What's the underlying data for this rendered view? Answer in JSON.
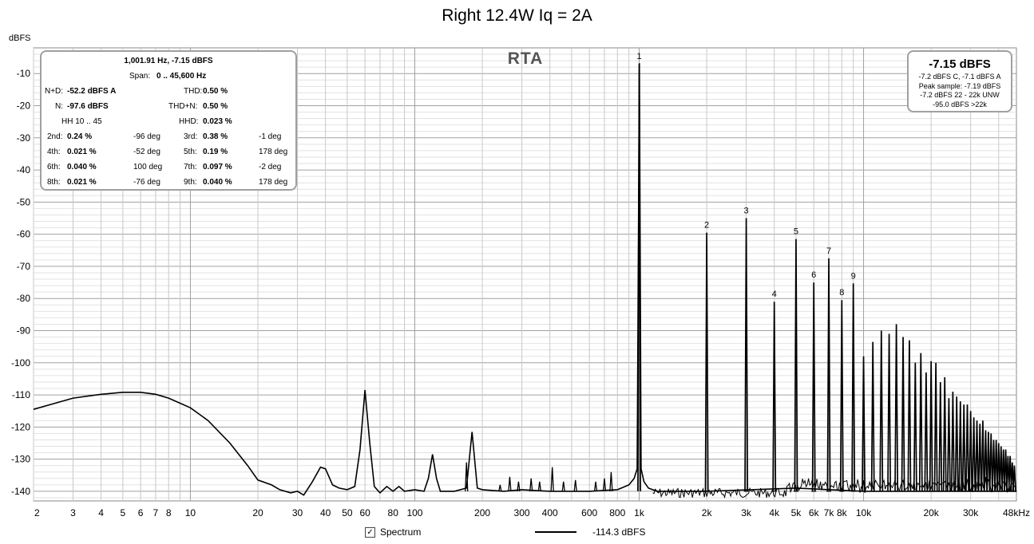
{
  "chart_data": {
    "type": "line",
    "title": "Right 12.4W Iq = 2A",
    "ylabel": "dBFS",
    "xscale": "log",
    "xlim": [
      2,
      48000
    ],
    "ylim": [
      -143,
      -2
    ],
    "grid": true,
    "x_ticks": [
      {
        "v": 2,
        "t": "2"
      },
      {
        "v": 3,
        "t": "3"
      },
      {
        "v": 4,
        "t": "4"
      },
      {
        "v": 5,
        "t": "5"
      },
      {
        "v": 6,
        "t": "6"
      },
      {
        "v": 7,
        "t": "7"
      },
      {
        "v": 8,
        "t": "8"
      },
      {
        "v": 10,
        "t": "10"
      },
      {
        "v": 20,
        "t": "20"
      },
      {
        "v": 30,
        "t": "30"
      },
      {
        "v": 40,
        "t": "40"
      },
      {
        "v": 50,
        "t": "50"
      },
      {
        "v": 60,
        "t": "60"
      },
      {
        "v": 80,
        "t": "80"
      },
      {
        "v": 100,
        "t": "100"
      },
      {
        "v": 200,
        "t": "200"
      },
      {
        "v": 300,
        "t": "300"
      },
      {
        "v": 400,
        "t": "400"
      },
      {
        "v": 600,
        "t": "600"
      },
      {
        "v": 800,
        "t": "800"
      },
      {
        "v": 1000,
        "t": "1k"
      },
      {
        "v": 2000,
        "t": "2k"
      },
      {
        "v": 3000,
        "t": "3k"
      },
      {
        "v": 4000,
        "t": "4k"
      },
      {
        "v": 5000,
        "t": "5k"
      },
      {
        "v": 6000,
        "t": "6k"
      },
      {
        "v": 7000,
        "t": "7k"
      },
      {
        "v": 8000,
        "t": "8k"
      },
      {
        "v": 10000,
        "t": "10k"
      },
      {
        "v": 20000,
        "t": "20k"
      },
      {
        "v": 30000,
        "t": "30k"
      },
      {
        "v": 48000,
        "t": "48kHz"
      }
    ],
    "y_ticks": [
      {
        "v": -10,
        "t": "-10"
      },
      {
        "v": -20,
        "t": "-20"
      },
      {
        "v": -30,
        "t": "-30"
      },
      {
        "v": -40,
        "t": "-40"
      },
      {
        "v": -50,
        "t": "-50"
      },
      {
        "v": -60,
        "t": "-60"
      },
      {
        "v": -70,
        "t": "-70"
      },
      {
        "v": -80,
        "t": "-80"
      },
      {
        "v": -90,
        "t": "-90"
      },
      {
        "v": -100,
        "t": "-100"
      },
      {
        "v": -110,
        "t": "-110"
      },
      {
        "v": -120,
        "t": "-120"
      },
      {
        "v": -130,
        "t": "-130"
      },
      {
        "v": -140,
        "t": "-140"
      }
    ],
    "floor": [
      [
        2,
        -114.5
      ],
      [
        3,
        -111
      ],
      [
        4,
        -109.8
      ],
      [
        5,
        -109.2
      ],
      [
        6,
        -109.2
      ],
      [
        7,
        -109.8
      ],
      [
        8,
        -111
      ],
      [
        10,
        -114
      ],
      [
        12,
        -118
      ],
      [
        15,
        -125
      ],
      [
        18,
        -132
      ],
      [
        20,
        -136.5
      ],
      [
        23,
        -138
      ],
      [
        25,
        -139.5
      ],
      [
        28,
        -140.5
      ],
      [
        30,
        -140
      ],
      [
        32,
        -141.2
      ],
      [
        35,
        -137
      ],
      [
        38,
        -132.5
      ],
      [
        40,
        -133
      ],
      [
        43,
        -138
      ],
      [
        46,
        -139
      ],
      [
        50,
        -139.5
      ],
      [
        54,
        -138.5
      ],
      [
        57,
        -127
      ],
      [
        60,
        -108.5
      ],
      [
        63,
        -125
      ],
      [
        66,
        -138.5
      ],
      [
        70,
        -140.5
      ],
      [
        75,
        -138.5
      ],
      [
        80,
        -140
      ],
      [
        85,
        -138.5
      ],
      [
        90,
        -140
      ],
      [
        100,
        -139.5
      ],
      [
        110,
        -140
      ],
      [
        115,
        -136
      ],
      [
        120,
        -128.5
      ],
      [
        125,
        -136
      ],
      [
        130,
        -140
      ],
      [
        150,
        -140
      ],
      [
        170,
        -139
      ],
      [
        180,
        -121.5
      ],
      [
        190,
        -139
      ],
      [
        200,
        -139.5
      ],
      [
        250,
        -140
      ],
      [
        300,
        -139.5
      ],
      [
        400,
        -140
      ],
      [
        600,
        -140
      ],
      [
        800,
        -139.5
      ],
      [
        900,
        -138
      ],
      [
        950,
        -136
      ],
      [
        980,
        -133
      ],
      [
        1002,
        -6.8
      ],
      [
        1020,
        -133
      ],
      [
        1050,
        -137
      ],
      [
        1100,
        -139
      ],
      [
        1200,
        -140
      ],
      [
        2000,
        -140
      ],
      [
        5000,
        -139
      ],
      [
        10000,
        -140
      ],
      [
        48000,
        -140
      ]
    ],
    "harmonics": [
      [
        1000,
        -7
      ],
      [
        2000,
        -59.5
      ],
      [
        3000,
        -55
      ],
      [
        4000,
        -81
      ],
      [
        5000,
        -61.5
      ],
      [
        6000,
        -75
      ],
      [
        7000,
        -67.5
      ],
      [
        8000,
        -80.5
      ],
      [
        9000,
        -75.3
      ],
      [
        10000,
        -98
      ],
      [
        11000,
        -93.5
      ],
      [
        12000,
        -90
      ],
      [
        13000,
        -91
      ],
      [
        14000,
        -88
      ],
      [
        15000,
        -92
      ],
      [
        16000,
        -93
      ],
      [
        17000,
        -100
      ],
      [
        18000,
        -97
      ],
      [
        19000,
        -103
      ],
      [
        20000,
        -99.5
      ],
      [
        21000,
        -100
      ],
      [
        22000,
        -106
      ],
      [
        23000,
        -104.5
      ],
      [
        24000,
        -111
      ],
      [
        25000,
        -109
      ],
      [
        26000,
        -110.5
      ],
      [
        27000,
        -112
      ],
      [
        28000,
        -113
      ],
      [
        29000,
        -113
      ],
      [
        30000,
        -115
      ],
      [
        31000,
        -117
      ],
      [
        32000,
        -118
      ],
      [
        33000,
        -119
      ],
      [
        34000,
        -118
      ],
      [
        35000,
        -121
      ],
      [
        36000,
        -121.5
      ],
      [
        37000,
        -122
      ],
      [
        38000,
        -124
      ],
      [
        39000,
        -124
      ],
      [
        40000,
        -125
      ],
      [
        41000,
        -126
      ],
      [
        42000,
        -127
      ],
      [
        43000,
        -127
      ],
      [
        44000,
        -129
      ],
      [
        45000,
        -129
      ],
      [
        46000,
        -131
      ],
      [
        47000,
        -132
      ]
    ],
    "spikes": [
      [
        170,
        -131
      ],
      [
        240,
        -138
      ],
      [
        265,
        -135.5
      ],
      [
        290,
        -137
      ],
      [
        330,
        -136
      ],
      [
        360,
        -137
      ],
      [
        410,
        -132.5
      ],
      [
        460,
        -137
      ],
      [
        520,
        -136.5
      ],
      [
        640,
        -137
      ],
      [
        700,
        -136
      ],
      [
        750,
        -134
      ]
    ],
    "harmonic_labels": [
      {
        "x": 1000,
        "y": -7,
        "t": "1"
      },
      {
        "x": 2000,
        "y": -59.5,
        "t": "2"
      },
      {
        "x": 3000,
        "y": -55,
        "t": "3"
      },
      {
        "x": 4000,
        "y": -81,
        "t": "4"
      },
      {
        "x": 5000,
        "y": -61.5,
        "t": "5"
      },
      {
        "x": 6000,
        "y": -75,
        "t": "6"
      },
      {
        "x": 7000,
        "y": -67.5,
        "t": "7"
      },
      {
        "x": 8000,
        "y": -80.5,
        "t": "8"
      },
      {
        "x": 9000,
        "y": -75.3,
        "t": "9"
      }
    ],
    "series": [
      {
        "name": "Spectrum",
        "level": "-114.3 dBFS"
      }
    ],
    "legend_position": "bottom-center"
  },
  "rta_label": "RTA",
  "stats": {
    "freq_level": "1,001.91 Hz, -7.15 dBFS",
    "span_label": "Span:",
    "span_value": "0 .. 45,600 Hz",
    "nd_label": "N+D:",
    "nd_value": "-52.2 dBFS A",
    "thd_label": "THD:",
    "thd_value": "0.50 %",
    "n_label": "N:",
    "n_value": "-97.6 dBFS",
    "thdn_label": "THD+N:",
    "thdn_value": "0.50 %",
    "hh_range": "HH 10 .. 45",
    "hhd_label": "HHD:",
    "hhd_value": "0.023 %",
    "harmonics": [
      {
        "l1": "2nd:",
        "v1": "0.24 %",
        "p1": "-96 deg",
        "l2": "3rd:",
        "v2": "0.38 %",
        "p2": "-1 deg"
      },
      {
        "l1": "4th:",
        "v1": "0.021 %",
        "p1": "-52 deg",
        "l2": "5th:",
        "v2": "0.19 %",
        "p2": "178 deg"
      },
      {
        "l1": "6th:",
        "v1": "0.040 %",
        "p1": "100 deg",
        "l2": "7th:",
        "v2": "0.097 %",
        "p2": "-2 deg"
      },
      {
        "l1": "8th:",
        "v1": "0.021 %",
        "p1": "-76 deg",
        "l2": "9th:",
        "v2": "0.040 %",
        "p2": "178 deg"
      }
    ]
  },
  "level": {
    "main": "-7.15 dBFS",
    "lines": [
      "-7.2 dBFS C, -7.1 dBFS A",
      "Peak sample: -7.19 dBFS",
      "-7.2 dBFS 22 - 22k UNW",
      "-95.0 dBFS >22k"
    ]
  },
  "legend": {
    "checkbox": "✓",
    "spectrum_label": "Spectrum",
    "level_label": "-114.3 dBFS"
  },
  "colors": {
    "trace": "#000000",
    "grid_major": "#a0a0a0",
    "grid_minor": "#e2e2e2",
    "box_border": "#a0a0a0"
  }
}
